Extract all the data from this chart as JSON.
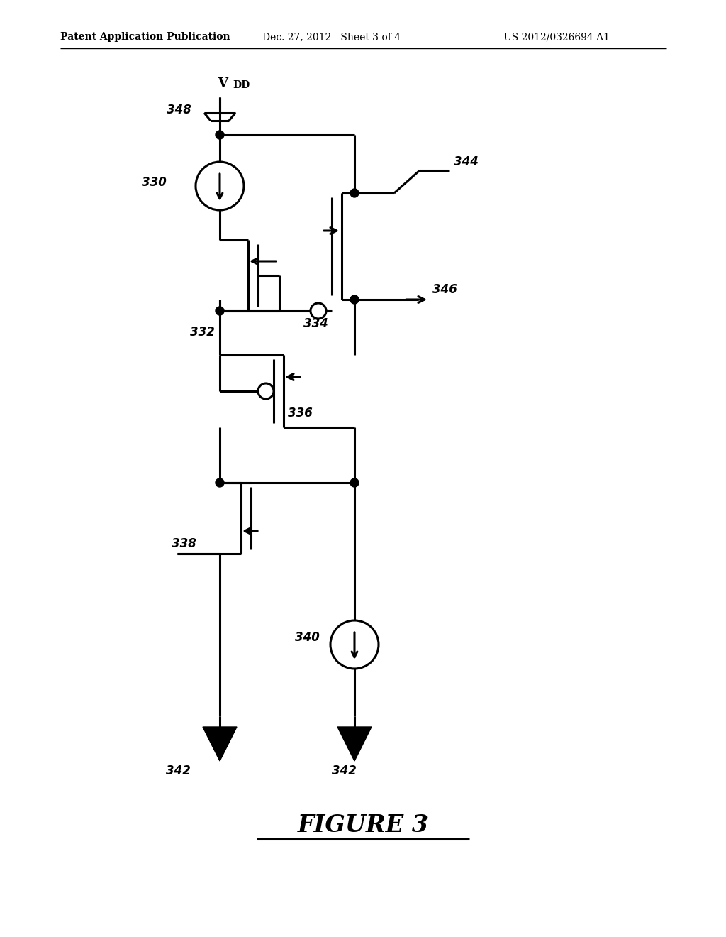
{
  "header_left": "Patent Application Publication",
  "header_center": "Dec. 27, 2012   Sheet 3 of 4",
  "header_right": "US 2012/0326694 A1",
  "figure_title": "FIGURE 3",
  "bg_color": "#ffffff",
  "lc": "#000000",
  "lw": 2.2
}
